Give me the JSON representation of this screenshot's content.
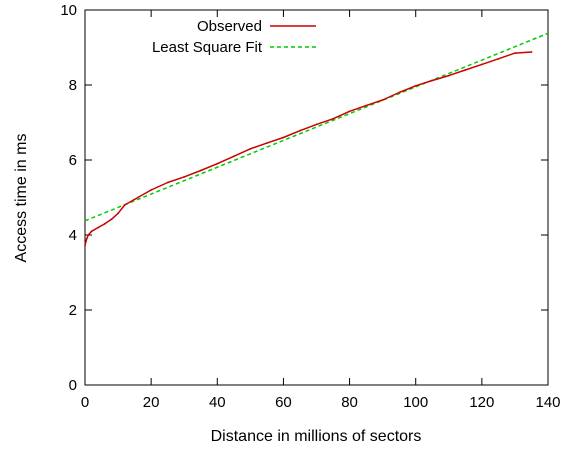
{
  "chart_data": {
    "type": "line",
    "title": "",
    "xlabel": "Distance in millions of sectors",
    "ylabel": "Access time in ms",
    "xlim": [
      0,
      140
    ],
    "ylim": [
      0,
      10
    ],
    "xticks": [
      0,
      20,
      40,
      60,
      80,
      100,
      120,
      140
    ],
    "yticks": [
      0,
      2,
      4,
      6,
      8,
      10
    ],
    "xtick_labels": [
      "0",
      "20",
      "40",
      "60",
      "80",
      "100",
      "120",
      "140"
    ],
    "ytick_labels": [
      "0",
      "2",
      "4",
      "6",
      "8",
      "10"
    ],
    "grid": false,
    "legend_position": "top-left",
    "series": [
      {
        "name": "Observed",
        "style": "solid",
        "color": "#cc0000",
        "x": [
          0,
          0.5,
          1,
          2,
          4,
          6,
          8,
          10,
          12,
          15,
          20,
          25,
          30,
          35,
          40,
          45,
          50,
          55,
          60,
          65,
          70,
          75,
          80,
          85,
          90,
          95,
          100,
          105,
          110,
          115,
          120,
          125,
          130,
          135
        ],
        "y": [
          3.72,
          3.9,
          4.0,
          4.1,
          4.2,
          4.3,
          4.42,
          4.58,
          4.8,
          4.95,
          5.2,
          5.4,
          5.55,
          5.72,
          5.9,
          6.1,
          6.3,
          6.45,
          6.6,
          6.78,
          6.95,
          7.1,
          7.3,
          7.45,
          7.6,
          7.8,
          7.98,
          8.12,
          8.25,
          8.4,
          8.55,
          8.7,
          8.85,
          8.88
        ]
      },
      {
        "name": "Least Square Fit",
        "style": "dashed",
        "color": "#00cc00",
        "x": [
          0,
          140
        ],
        "y": [
          4.38,
          9.38
        ]
      }
    ]
  }
}
